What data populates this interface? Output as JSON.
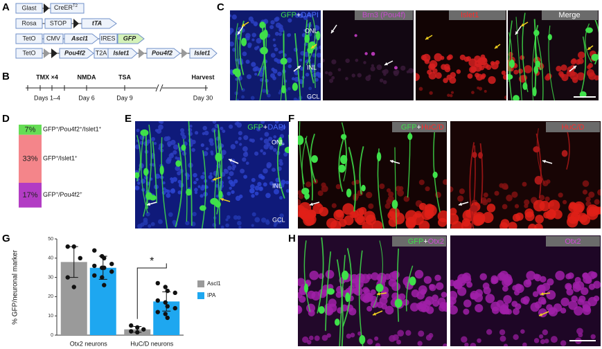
{
  "panel_letters": [
    "A",
    "B",
    "C",
    "D",
    "E",
    "F",
    "G",
    "H"
  ],
  "panel_a": {
    "rows": [
      [
        "Glast",
        "CreER",
        "T2"
      ],
      [
        "Rosa",
        "STOP",
        "tTA"
      ],
      [
        "TetO",
        "CMV",
        "Ascl1",
        "IRES",
        "GFP"
      ],
      [
        "TetO",
        "Pou4f2",
        "T2A",
        "Islet1",
        "Pou4f2",
        "Islet1"
      ]
    ]
  },
  "panel_b": {
    "events": [
      {
        "label": "TMX ×4",
        "day": "Days 1–4"
      },
      {
        "label": "NMDA",
        "day": "Day 6"
      },
      {
        "label": "TSA",
        "day": "Day 9"
      },
      {
        "label": "Harvest",
        "day": "Day 30"
      }
    ]
  },
  "panel_c": {
    "gfp": "GFP",
    "plus": "+",
    "dapi": "DAPI",
    "layers": [
      "ONL",
      "INL",
      "GCL"
    ],
    "brn3": "Brn3 (Pou4f)",
    "islet1": "Islet1",
    "merge": "Merge"
  },
  "panel_d": {
    "segments": [
      {
        "value": 7,
        "value_label": "7%",
        "color": "#66dd55",
        "label": [
          "GFP",
          "+",
          "/Pou4f2",
          "+",
          "/Islet1",
          "+"
        ]
      },
      {
        "value": 33,
        "value_label": "33%",
        "color": "#f4858a",
        "label": [
          "GFP",
          "+",
          "/Islet1",
          "+"
        ]
      },
      {
        "value": 17,
        "value_label": "17%",
        "color": "#b23cc4",
        "label": [
          "GFP",
          "+",
          "/Pou4f2",
          "+"
        ]
      }
    ]
  },
  "panel_e": {
    "gfp": "GFP",
    "plus": "+",
    "dapi": "DAPI",
    "layers": [
      "ONL",
      "INL",
      "GCL"
    ]
  },
  "panel_f": {
    "gfp": "GFP",
    "plus": "+",
    "marker": "HuC/D",
    "marker_alone": "HuC/D"
  },
  "panel_h": {
    "gfp": "GFP",
    "plus": "+",
    "marker": "Otx2",
    "marker_alone": "Otx2"
  },
  "chart_data": {
    "type": "bar",
    "y_label": "% GFP/neuronal marker",
    "categories": [
      "Otx2 neurons",
      "HuC/D neurons"
    ],
    "series": [
      {
        "name": "Ascl1",
        "color": "#9a9a9a",
        "values": [
          38,
          3
        ],
        "errors": [
          8,
          1.5
        ],
        "points": [
          [
            46,
            46,
            40,
            30,
            25
          ],
          [
            5,
            4,
            3,
            2,
            1.5
          ]
        ]
      },
      {
        "name": "IPA",
        "color": "#1ea7f0",
        "values": [
          35,
          17.5
        ],
        "errors": [
          6,
          5
        ],
        "points": [
          [
            44,
            41,
            40,
            37,
            36,
            35,
            35,
            33,
            31,
            30,
            26
          ],
          [
            27,
            25,
            23,
            22,
            18,
            17,
            15,
            14,
            12,
            11,
            9
          ]
        ]
      }
    ],
    "ylim": [
      0,
      50
    ],
    "yticks": [
      0,
      10,
      20,
      30,
      40,
      50
    ],
    "annotation": "*"
  }
}
